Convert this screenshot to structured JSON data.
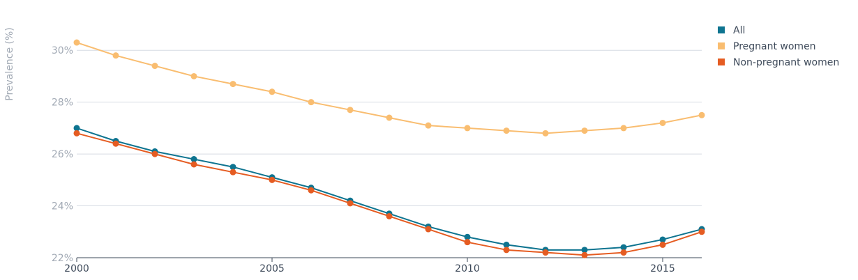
{
  "chart_data": {
    "type": "line",
    "title": "",
    "xlabel": "",
    "ylabel": "Prevalence (%)",
    "x": [
      2000,
      2001,
      2002,
      2003,
      2004,
      2005,
      2006,
      2007,
      2008,
      2009,
      2010,
      2011,
      2012,
      2013,
      2014,
      2015,
      2016
    ],
    "xlim": [
      2000,
      2016
    ],
    "ylim": [
      22,
      31
    ],
    "x_ticks": [
      2000,
      2005,
      2010,
      2015
    ],
    "x_tick_labels": [
      "2000",
      "2005",
      "2010",
      "2015"
    ],
    "y_ticks": [
      22,
      24,
      26,
      28,
      30
    ],
    "y_tick_labels": [
      "22%",
      "24%",
      "26%",
      "28%",
      "30%"
    ],
    "grid": true,
    "legend_position": "top-right",
    "series": [
      {
        "name": "All",
        "color": "#0e7490",
        "values": [
          27.0,
          26.5,
          26.1,
          25.8,
          25.5,
          25.1,
          24.7,
          24.2,
          23.7,
          23.2,
          22.8,
          22.5,
          22.3,
          22.3,
          22.4,
          22.7,
          23.1
        ]
      },
      {
        "name": "Pregnant women",
        "color": "#f9bd70",
        "values": [
          30.3,
          29.8,
          29.4,
          29.0,
          28.7,
          28.4,
          28.0,
          27.7,
          27.4,
          27.1,
          27.0,
          26.9,
          26.8,
          26.9,
          27.0,
          27.2,
          27.5
        ]
      },
      {
        "name": "Non-pregnant women",
        "color": "#e55c22",
        "values": [
          26.8,
          26.4,
          26.0,
          25.6,
          25.3,
          25.0,
          24.6,
          24.1,
          23.6,
          23.1,
          22.6,
          22.3,
          22.2,
          22.1,
          22.2,
          22.5,
          23.0
        ]
      }
    ]
  }
}
